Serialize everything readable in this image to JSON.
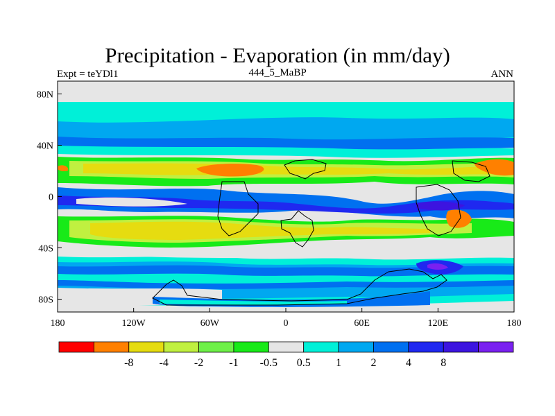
{
  "title": "Precipitation - Evaporation (in mm/day)",
  "subtitle_left": "Expt = teYDl1",
  "subtitle_center": "444_5_MaBP",
  "subtitle_right": "ANN",
  "map": {
    "lon_range": [
      -180,
      180
    ],
    "lat_range": [
      -90,
      90
    ],
    "lon_ticks": [
      {
        "value": -180,
        "label": "180"
      },
      {
        "value": -120,
        "label": "120W"
      },
      {
        "value": -60,
        "label": "60W"
      },
      {
        "value": 0,
        "label": "0"
      },
      {
        "value": 60,
        "label": "60E"
      },
      {
        "value": 120,
        "label": "120E"
      },
      {
        "value": 180,
        "label": "180"
      }
    ],
    "lat_ticks": [
      {
        "value": 80,
        "label": "80N"
      },
      {
        "value": 40,
        "label": "40N"
      },
      {
        "value": 0,
        "label": "0"
      },
      {
        "value": -40,
        "label": "40S"
      },
      {
        "value": -80,
        "label": "80S"
      }
    ]
  },
  "colorbar": {
    "colors": [
      "#ff0000",
      "#ff8000",
      "#e6dc10",
      "#c0f040",
      "#6ef048",
      "#18ea18",
      "#e6e6e6",
      "#00f0d8",
      "#00a8f0",
      "#0070f0",
      "#1f28f0",
      "#3c14e0",
      "#7a20f0"
    ],
    "labels": [
      "-8",
      "-4",
      "-2",
      "-1",
      "-0.5",
      "0.5",
      "1",
      "2",
      "4",
      "8"
    ]
  }
}
